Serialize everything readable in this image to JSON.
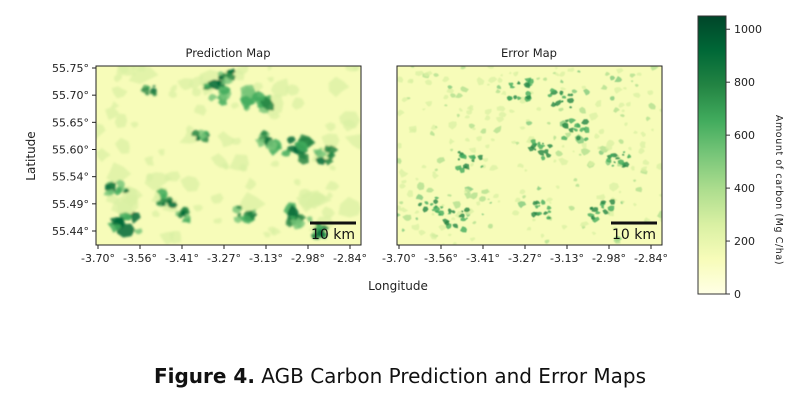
{
  "caption": {
    "label": "Figure 4.",
    "text": "AGB Carbon Prediction and Error Maps"
  },
  "chart_data": {
    "type": "heatmap",
    "x_label": "Longitude",
    "y_label": "Latitude",
    "x_ticks": [
      "-3.70°",
      "-3.56°",
      "-3.41°",
      "-3.27°",
      "-3.13°",
      "-2.98°",
      "-2.84°"
    ],
    "y_ticks": [
      "55.75°",
      "55.70°",
      "55.65°",
      "55.60°",
      "55.54°",
      "55.49°",
      "55.44°"
    ],
    "colormap": "YlGn",
    "colors": [
      "#ffffe5",
      "#f7fcb9",
      "#d9f0a3",
      "#addd8e",
      "#78c679",
      "#41ab5d",
      "#238443",
      "#006837",
      "#004529"
    ],
    "colorbar": {
      "label": "Amount of carbon (Mg C/ha)",
      "range": [
        0,
        1050
      ],
      "ticks": [
        0,
        200,
        400,
        600,
        800,
        1000
      ]
    },
    "panels": [
      {
        "title": "Prediction Map",
        "scale_bar": "10 km"
      },
      {
        "title": "Error Map",
        "scale_bar": "10 km"
      }
    ]
  }
}
